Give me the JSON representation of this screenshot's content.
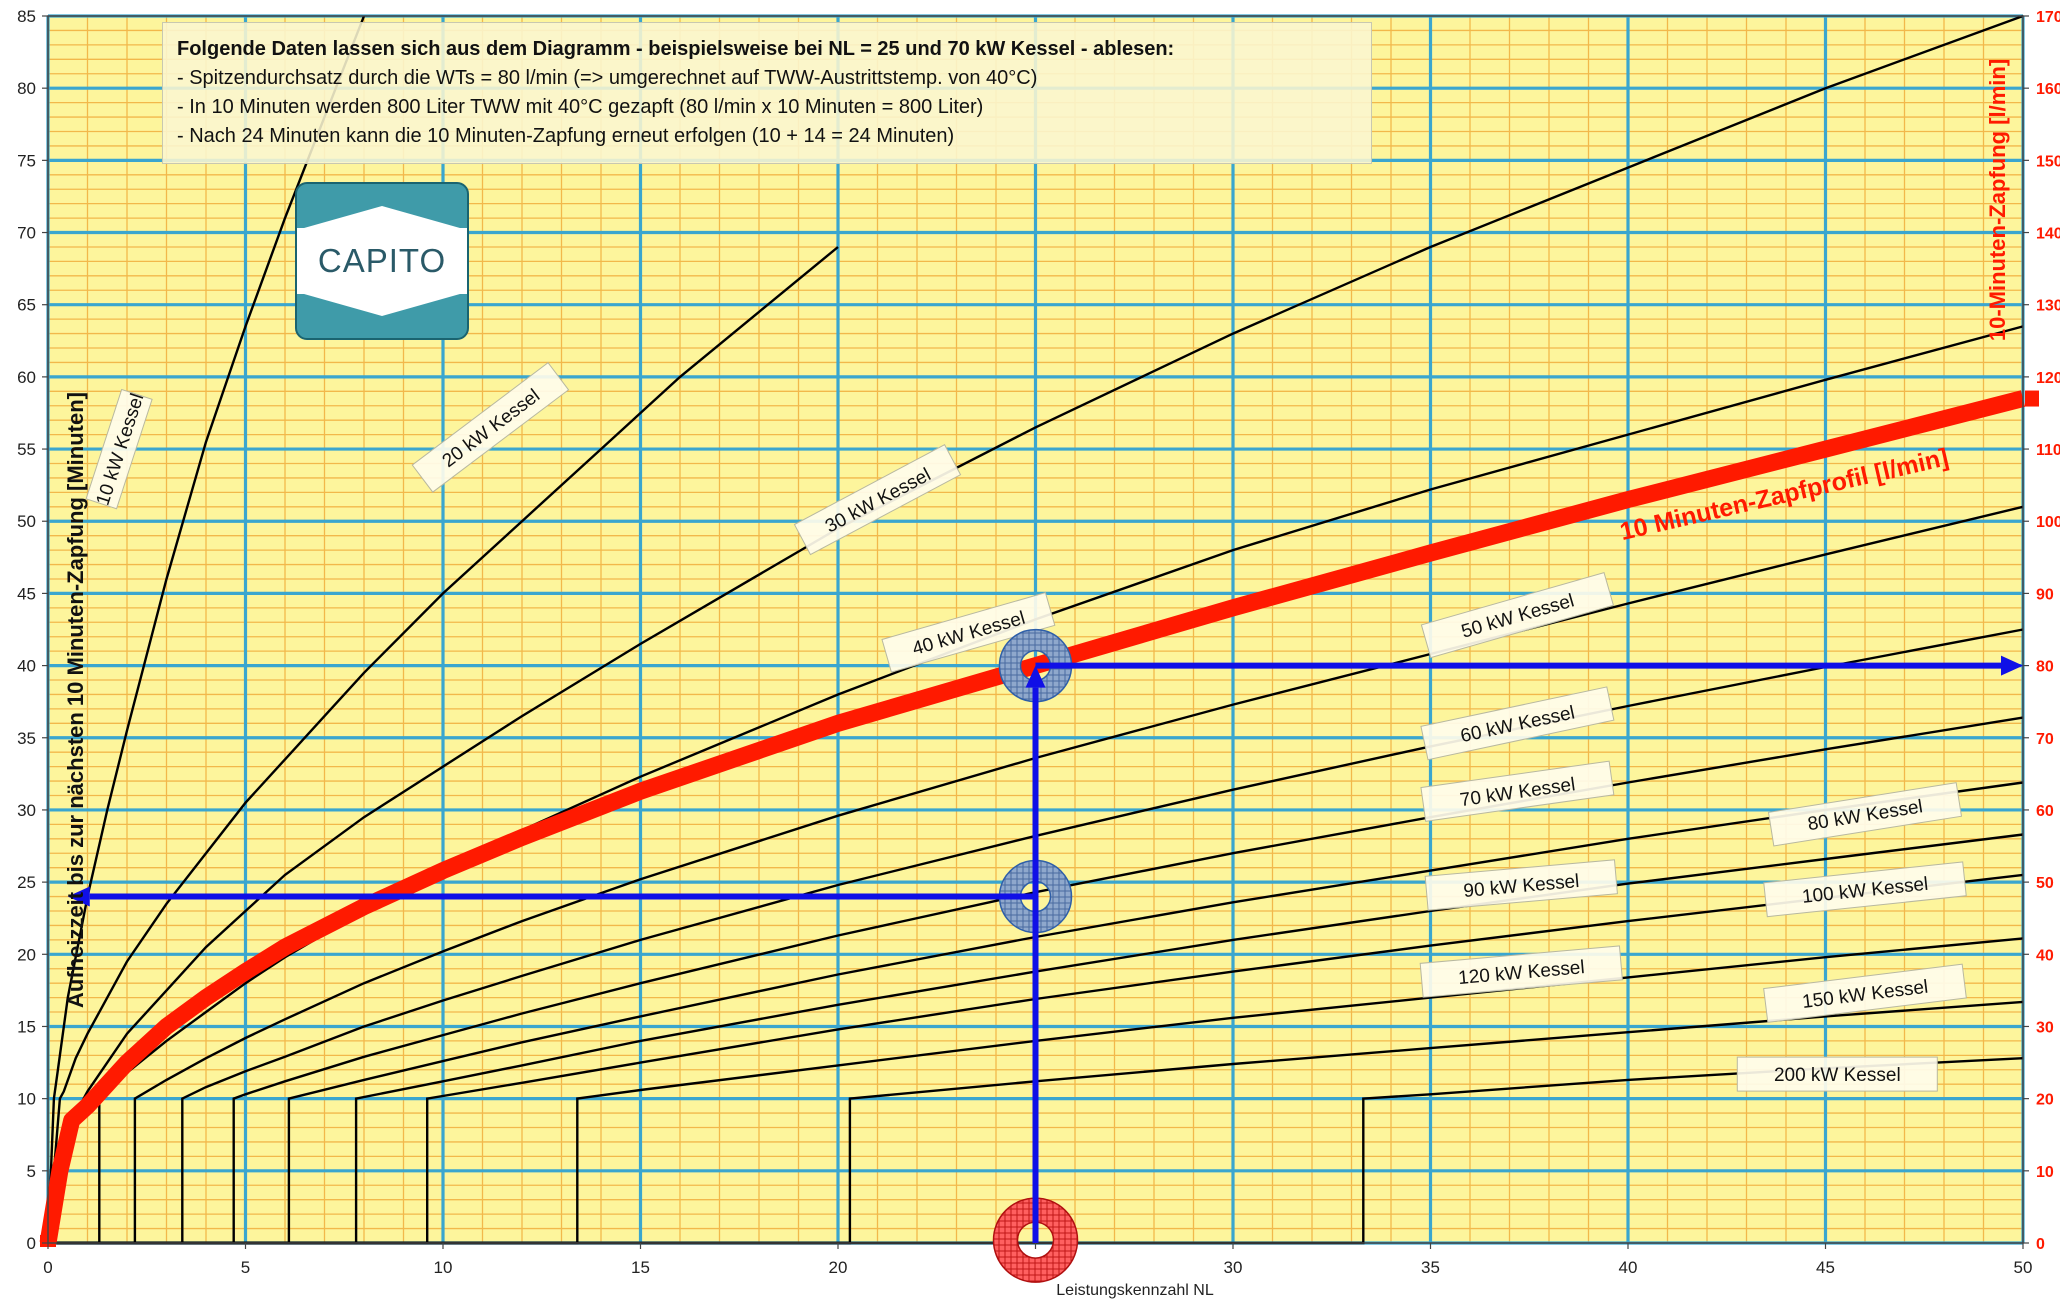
{
  "info": {
    "heading": "Folgende Daten lassen sich aus dem Diagramm  - beispielsweise bei NL = 25 und 70 kW Kessel -  ablesen:",
    "lines": [
      "-  Spitzendurchsatz durch die WTs = 80 l/min    (=> umgerechnet auf  TWW-Austrittstemp. von 40°C)",
      "-  In 10 Minuten werden 800 Liter TWW mit 40°C gezapft (80 l/min x 10 Minuten = 800 Liter)",
      "-  Nach 24 Minuten kann die 10 Minuten-Zapfung erneut  erfolgen (10 + 14 = 24 Minuten)"
    ]
  },
  "logo": {
    "text": "CAPITO"
  },
  "chart_data": {
    "type": "line",
    "xlabel": "Leistungskennzahl NL",
    "ylabel": "Aufheizzeit bis zur nächsten 10 Minuten-Zapfung   [Minuten]",
    "y2label": "10-Minuten-Zapfung   [l/min]",
    "xlim": [
      0,
      50
    ],
    "ylim": [
      0,
      85
    ],
    "y2lim": [
      0,
      170
    ],
    "x_ticks": [
      0,
      5,
      10,
      15,
      20,
      25,
      30,
      35,
      40,
      45,
      50
    ],
    "y_ticks": [
      0,
      5,
      10,
      15,
      20,
      25,
      30,
      35,
      40,
      45,
      50,
      55,
      60,
      65,
      70,
      75,
      80,
      85
    ],
    "y2_ticks": [
      0,
      10,
      20,
      30,
      40,
      50,
      60,
      70,
      80,
      90,
      100,
      110,
      120,
      130,
      140,
      150,
      160,
      170
    ],
    "grid": true,
    "legend": "none",
    "colors": {
      "background": "#fdf59c",
      "minor_grid": "#f2b84b",
      "major_grid": "#3aa6cf",
      "curves": "#000000",
      "profile": "#ff1a00",
      "markers": "#1010e6",
      "ring": "#2f5fa8"
    },
    "series": [
      {
        "name": "10 kW Kessel",
        "x": [
          0,
          0.15,
          0.25,
          0.5,
          1,
          1.5,
          2,
          3,
          4,
          5,
          6,
          7,
          8
        ],
        "y": [
          0,
          10,
          12,
          17,
          24,
          30,
          35.5,
          46,
          55.5,
          63.5,
          71,
          78,
          85
        ]
      },
      {
        "name": "20 kW Kessel",
        "x": [
          0,
          0.3,
          0.4,
          0.7,
          1,
          2,
          3,
          4,
          5,
          6,
          7,
          8,
          10,
          12,
          14,
          16,
          18,
          20
        ],
        "y": [
          0,
          10,
          10.5,
          12.8,
          14.5,
          19.5,
          23.5,
          27,
          30.5,
          33.5,
          36.5,
          39.5,
          45,
          50,
          55,
          60,
          64.5,
          69
        ]
      },
      {
        "name": "30 kW Kessel",
        "x": [
          0,
          0.9,
          1,
          2,
          3,
          4,
          5,
          6,
          8,
          10,
          12,
          15,
          20,
          25,
          30,
          35,
          40,
          45,
          50
        ],
        "y": [
          0,
          10,
          10.5,
          14.5,
          17.5,
          20.5,
          23,
          25.5,
          29.5,
          33,
          36.5,
          41.5,
          49.5,
          56.5,
          63,
          69,
          74.5,
          80,
          85
        ]
      },
      {
        "name": "40 kW Kessel",
        "x": [
          0,
          1.3,
          1.3,
          2,
          3,
          4,
          5,
          6,
          8,
          10,
          12,
          15,
          20,
          25,
          30,
          35,
          40,
          45,
          50
        ],
        "y": [
          0,
          0,
          10,
          11.8,
          14,
          16,
          18,
          19.8,
          23,
          26,
          28.6,
          32.3,
          38,
          43.2,
          48,
          52.2,
          56,
          59.8,
          63.5
        ]
      },
      {
        "name": "50 kW Kessel",
        "x": [
          0,
          2.2,
          2.2,
          3,
          4,
          5,
          6,
          8,
          10,
          12,
          15,
          20,
          25,
          30,
          35,
          40,
          45,
          50
        ],
        "y": [
          0,
          0,
          10,
          11.3,
          12.8,
          14.2,
          15.5,
          18,
          20.2,
          22.3,
          25.2,
          29.6,
          33.6,
          37.3,
          40.8,
          44.3,
          47.7,
          51
        ]
      },
      {
        "name": "60 kW Kessel",
        "x": [
          0,
          3.4,
          3.4,
          4,
          5,
          6,
          8,
          10,
          12,
          15,
          20,
          25,
          30,
          35,
          40,
          45,
          50
        ],
        "y": [
          0,
          0,
          10,
          10.8,
          11.9,
          12.9,
          15,
          16.8,
          18.5,
          21,
          24.8,
          28.2,
          31.4,
          34.4,
          37.2,
          39.9,
          42.5
        ]
      },
      {
        "name": "70 kW Kessel",
        "x": [
          0,
          4.7,
          4.7,
          5,
          6,
          8,
          10,
          12,
          15,
          20,
          25,
          30,
          35,
          40,
          45,
          50
        ],
        "y": [
          0,
          0,
          10,
          10.3,
          11.2,
          12.9,
          14.4,
          15.9,
          18,
          21.3,
          24.3,
          27,
          29.5,
          31.9,
          34.2,
          36.4
        ]
      },
      {
        "name": "80 kW Kessel",
        "x": [
          0,
          6.1,
          6.1,
          8,
          10,
          12,
          15,
          20,
          25,
          30,
          35,
          40,
          45,
          50
        ],
        "y": [
          0,
          0,
          10,
          11.3,
          12.6,
          13.9,
          15.7,
          18.6,
          21.2,
          23.6,
          25.8,
          28,
          30,
          31.9
        ]
      },
      {
        "name": "90 kW Kessel",
        "x": [
          0,
          7.8,
          7.8,
          10,
          12,
          15,
          20,
          25,
          30,
          35,
          40,
          45,
          50
        ],
        "y": [
          0,
          0,
          10,
          11.2,
          12.3,
          14,
          16.5,
          18.8,
          21,
          23,
          24.9,
          26.6,
          28.3
        ]
      },
      {
        "name": "100 kW Kessel",
        "x": [
          0,
          9.6,
          9.6,
          12,
          15,
          20,
          25,
          30,
          35,
          40,
          45,
          50
        ],
        "y": [
          0,
          0,
          10,
          11.1,
          12.5,
          14.8,
          16.9,
          18.8,
          20.6,
          22.3,
          23.9,
          25.5
        ]
      },
      {
        "name": "120 kW Kessel",
        "x": [
          0,
          13.4,
          13.4,
          15,
          20,
          25,
          30,
          35,
          40,
          45,
          50
        ],
        "y": [
          0,
          0,
          10,
          10.6,
          12.3,
          14,
          15.6,
          17,
          18.4,
          19.8,
          21.1
        ]
      },
      {
        "name": "150 kW Kessel",
        "x": [
          0,
          20.3,
          20.3,
          25,
          30,
          35,
          40,
          45,
          50
        ],
        "y": [
          0,
          0,
          10,
          11.2,
          12.4,
          13.5,
          14.6,
          15.7,
          16.7
        ]
      },
      {
        "name": "200 kW Kessel",
        "x": [
          0,
          33.3,
          33.3,
          35,
          40,
          45,
          50
        ],
        "y": [
          0,
          0,
          10,
          10.3,
          11.3,
          12.1,
          12.8
        ]
      },
      {
        "name": "10 Minuten-Zapfprofil   [l/min]",
        "x": [
          0,
          0.3,
          0.6,
          1,
          2,
          3,
          4,
          5,
          6,
          8,
          10,
          12,
          15,
          20,
          25,
          30,
          35,
          40,
          45,
          50
        ],
        "y": [
          0,
          5,
          8.5,
          9.5,
          12.5,
          15,
          17,
          18.8,
          20.5,
          23.3,
          25.8,
          28.1,
          31.3,
          36,
          40,
          44,
          47.8,
          51.5,
          55,
          58.5
        ]
      }
    ],
    "annotations": [
      {
        "text": "10 Minuten-Zapfprofil   [l/min]"
      },
      {
        "type": "arrow",
        "from": [
          25,
          0
        ],
        "to": [
          25,
          40
        ]
      },
      {
        "type": "arrow",
        "from": [
          25,
          40
        ],
        "to": [
          50,
          40
        ]
      },
      {
        "type": "arrow",
        "from": [
          25,
          24
        ],
        "to": [
          0.5,
          24
        ]
      }
    ]
  }
}
